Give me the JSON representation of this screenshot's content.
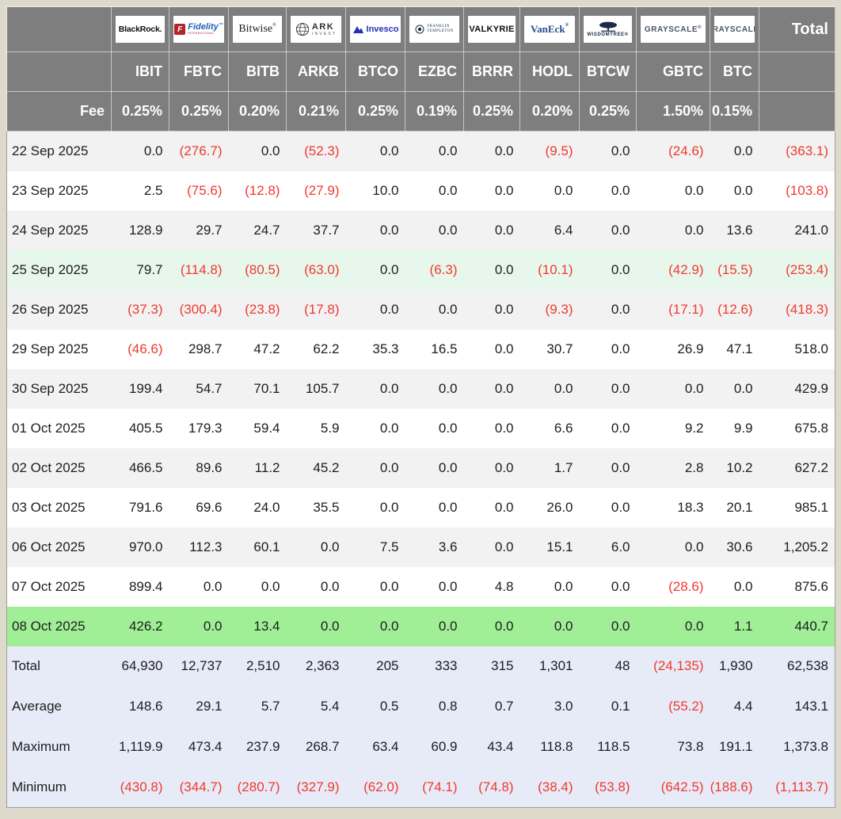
{
  "colors": {
    "header_bg": "#7e7e7e",
    "negative": "#f0392e",
    "stripe": "#f2f2f2",
    "mint": "#e8f7ec",
    "green": "#a0ef96",
    "summary_bg": "#e7ebf7",
    "page_bg": "#ddd9cb"
  },
  "table": {
    "fee_label": "Fee",
    "total_label": "Total",
    "funds": [
      {
        "ticker": "IBIT",
        "fee": "0.25%",
        "brand": "blackrock",
        "brand_name": "BlackRock"
      },
      {
        "ticker": "FBTC",
        "fee": "0.25%",
        "brand": "fidelity",
        "brand_name": "Fidelity"
      },
      {
        "ticker": "BITB",
        "fee": "0.20%",
        "brand": "bitwise",
        "brand_name": "Bitwise"
      },
      {
        "ticker": "ARKB",
        "fee": "0.21%",
        "brand": "ark",
        "brand_name": "ARK Invest"
      },
      {
        "ticker": "BTCO",
        "fee": "0.25%",
        "brand": "invesco",
        "brand_name": "Invesco"
      },
      {
        "ticker": "EZBC",
        "fee": "0.19%",
        "brand": "franklin",
        "brand_name": "Franklin Templeton"
      },
      {
        "ticker": "BRRR",
        "fee": "0.25%",
        "brand": "valkyrie",
        "brand_name": "Valkyrie"
      },
      {
        "ticker": "HODL",
        "fee": "0.20%",
        "brand": "vaneck",
        "brand_name": "VanEck"
      },
      {
        "ticker": "BTCW",
        "fee": "0.25%",
        "brand": "wisdomtree",
        "brand_name": "WisdomTree"
      },
      {
        "ticker": "GBTC",
        "fee": "1.50%",
        "brand": "grayscale",
        "brand_name": "Grayscale"
      },
      {
        "ticker": "BTC",
        "fee": "0.15%",
        "brand": "grayscale",
        "brand_name": "Grayscale"
      }
    ],
    "rows": [
      {
        "label": "22 Sep 2025",
        "tone": "gray",
        "values": [
          "0.0",
          "(276.7)",
          "0.0",
          "(52.3)",
          "0.0",
          "0.0",
          "0.0",
          "(9.5)",
          "0.0",
          "(24.6)",
          "0.0",
          "(363.1)"
        ]
      },
      {
        "label": "23 Sep 2025",
        "tone": "white",
        "values": [
          "2.5",
          "(75.6)",
          "(12.8)",
          "(27.9)",
          "10.0",
          "0.0",
          "0.0",
          "0.0",
          "0.0",
          "0.0",
          "0.0",
          "(103.8)"
        ]
      },
      {
        "label": "24 Sep 2025",
        "tone": "gray",
        "values": [
          "128.9",
          "29.7",
          "24.7",
          "37.7",
          "0.0",
          "0.0",
          "0.0",
          "6.4",
          "0.0",
          "0.0",
          "13.6",
          "241.0"
        ]
      },
      {
        "label": "25 Sep 2025",
        "tone": "mint",
        "values": [
          "79.7",
          "(114.8)",
          "(80.5)",
          "(63.0)",
          "0.0",
          "(6.3)",
          "0.0",
          "(10.1)",
          "0.0",
          "(42.9)",
          "(15.5)",
          "(253.4)"
        ]
      },
      {
        "label": "26 Sep 2025",
        "tone": "gray",
        "values": [
          "(37.3)",
          "(300.4)",
          "(23.8)",
          "(17.8)",
          "0.0",
          "0.0",
          "0.0",
          "(9.3)",
          "0.0",
          "(17.1)",
          "(12.6)",
          "(418.3)"
        ]
      },
      {
        "label": "29 Sep 2025",
        "tone": "white",
        "values": [
          "(46.6)",
          "298.7",
          "47.2",
          "62.2",
          "35.3",
          "16.5",
          "0.0",
          "30.7",
          "0.0",
          "26.9",
          "47.1",
          "518.0"
        ]
      },
      {
        "label": "30 Sep 2025",
        "tone": "gray",
        "values": [
          "199.4",
          "54.7",
          "70.1",
          "105.7",
          "0.0",
          "0.0",
          "0.0",
          "0.0",
          "0.0",
          "0.0",
          "0.0",
          "429.9"
        ]
      },
      {
        "label": "01 Oct 2025",
        "tone": "white",
        "values": [
          "405.5",
          "179.3",
          "59.4",
          "5.9",
          "0.0",
          "0.0",
          "0.0",
          "6.6",
          "0.0",
          "9.2",
          "9.9",
          "675.8"
        ]
      },
      {
        "label": "02 Oct 2025",
        "tone": "gray",
        "values": [
          "466.5",
          "89.6",
          "11.2",
          "45.2",
          "0.0",
          "0.0",
          "0.0",
          "1.7",
          "0.0",
          "2.8",
          "10.2",
          "627.2"
        ]
      },
      {
        "label": "03 Oct 2025",
        "tone": "white",
        "values": [
          "791.6",
          "69.6",
          "24.0",
          "35.5",
          "0.0",
          "0.0",
          "0.0",
          "26.0",
          "0.0",
          "18.3",
          "20.1",
          "985.1"
        ]
      },
      {
        "label": "06 Oct 2025",
        "tone": "gray",
        "values": [
          "970.0",
          "112.3",
          "60.1",
          "0.0",
          "7.5",
          "3.6",
          "0.0",
          "15.1",
          "6.0",
          "0.0",
          "30.6",
          "1,205.2"
        ]
      },
      {
        "label": "07 Oct 2025",
        "tone": "white",
        "values": [
          "899.4",
          "0.0",
          "0.0",
          "0.0",
          "0.0",
          "0.0",
          "4.8",
          "0.0",
          "0.0",
          "(28.6)",
          "0.0",
          "875.6"
        ]
      },
      {
        "label": "08 Oct 2025",
        "tone": "green",
        "values": [
          "426.2",
          "0.0",
          "13.4",
          "0.0",
          "0.0",
          "0.0",
          "0.0",
          "0.0",
          "0.0",
          "0.0",
          "1.1",
          "440.7"
        ]
      }
    ],
    "summary": [
      {
        "label": "Total",
        "values": [
          "64,930",
          "12,737",
          "2,510",
          "2,363",
          "205",
          "333",
          "315",
          "1,301",
          "48",
          "(24,135)",
          "1,930",
          "62,538"
        ]
      },
      {
        "label": "Average",
        "values": [
          "148.6",
          "29.1",
          "5.7",
          "5.4",
          "0.5",
          "0.8",
          "0.7",
          "3.0",
          "0.1",
          "(55.2)",
          "4.4",
          "143.1"
        ]
      },
      {
        "label": "Maximum",
        "values": [
          "1,119.9",
          "473.4",
          "237.9",
          "268.7",
          "63.4",
          "60.9",
          "43.4",
          "118.8",
          "118.5",
          "73.8",
          "191.1",
          "1,373.8"
        ]
      },
      {
        "label": "Minimum",
        "values": [
          "(430.8)",
          "(344.7)",
          "(280.7)",
          "(327.9)",
          "(62.0)",
          "(74.1)",
          "(74.8)",
          "(38.4)",
          "(53.8)",
          "(642.5)",
          "(188.6)",
          "(1,113.7)"
        ]
      }
    ]
  }
}
